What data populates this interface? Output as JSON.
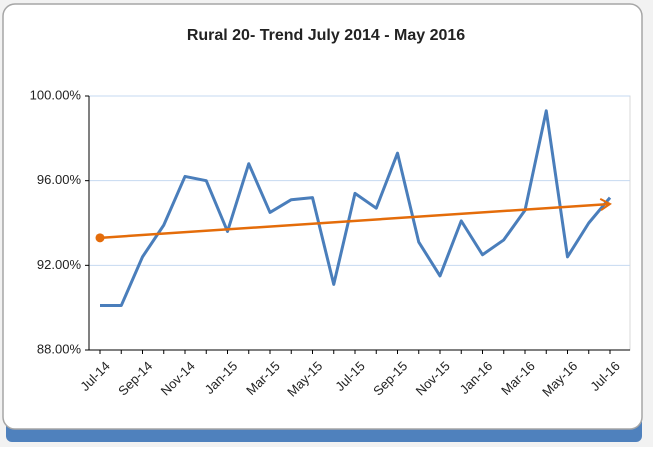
{
  "chart_data": {
    "type": "line",
    "title": "Rural 20- Trend July 2014 - May 2016",
    "categories": [
      "Jul-14",
      null,
      "Sep-14",
      null,
      "Nov-14",
      null,
      "Jan-15",
      null,
      "Mar-15",
      null,
      "May-15",
      null,
      "Jul-15",
      null,
      "Sep-15",
      null,
      "Nov-15",
      null,
      "Jan-16",
      null,
      "Mar-16",
      null,
      "May-16",
      null,
      "Jul-16"
    ],
    "series": [
      {
        "color": "#4a7ebb",
        "values": [
          90.1,
          90.1,
          92.4,
          93.9,
          96.2,
          96.0,
          93.6,
          96.8,
          94.5,
          95.1,
          95.2,
          91.1,
          95.4,
          94.7,
          97.3,
          93.1,
          91.5,
          94.1,
          92.5,
          93.2,
          94.6,
          99.3,
          92.4,
          94.0,
          95.2
        ]
      }
    ],
    "trendline": {
      "color": "#e46c0a",
      "values": [
        93.3,
        94.9
      ]
    },
    "ylim": [
      88,
      100
    ],
    "yticks": [
      {
        "value": 88,
        "label": "88.00%"
      },
      {
        "value": 92,
        "label": "92.00%"
      },
      {
        "value": 96,
        "label": "96.00%"
      },
      {
        "value": 100,
        "label": "100.00%"
      }
    ],
    "grid": true
  }
}
